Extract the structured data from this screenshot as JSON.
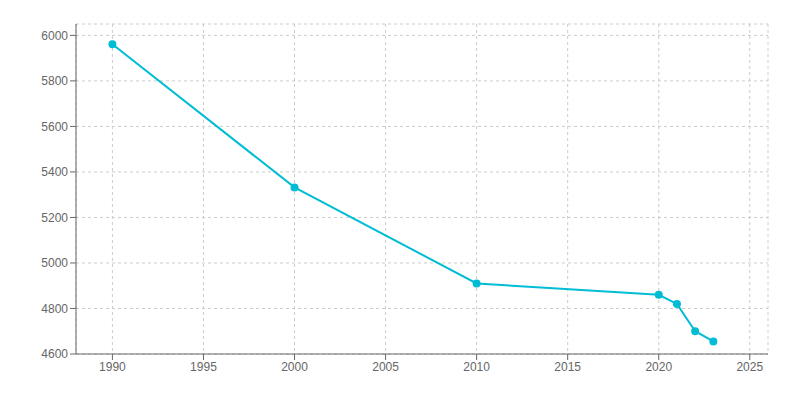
{
  "chart_data": {
    "type": "line",
    "x": [
      1990,
      2000,
      2010,
      2020,
      2021,
      2022,
      2023
    ],
    "values": [
      5961,
      5332,
      4910,
      4860,
      4820,
      4700,
      4655
    ],
    "color": "#00BCD4",
    "marker": "circle",
    "xlim": [
      1988,
      2026
    ],
    "ylim": [
      4600,
      6050
    ],
    "xticks": [
      1990,
      1995,
      2000,
      2005,
      2010,
      2015,
      2020,
      2025
    ],
    "yticks": [
      4600,
      4800,
      5000,
      5200,
      5400,
      5600,
      5800,
      6000
    ],
    "grid": true
  }
}
